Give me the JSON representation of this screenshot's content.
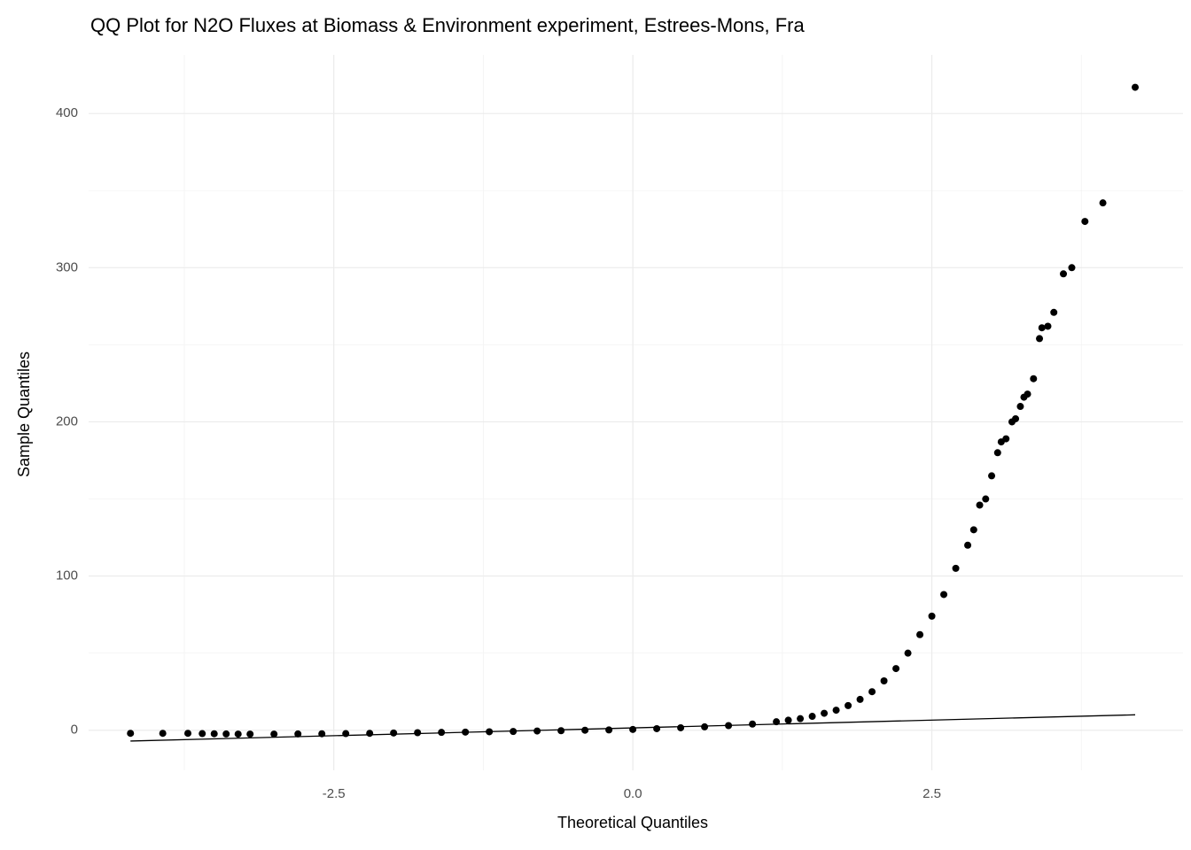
{
  "chart_data": {
    "type": "scatter",
    "title": "QQ Plot for N2O Fluxes at Biomass & Environment experiment, Estrees-Mons, Fra",
    "x_label": "Theoretical Quantiles",
    "y_label": "Sample Quantiles",
    "x": [
      -4.2,
      -3.93,
      -3.72,
      -3.6,
      -3.5,
      -3.4,
      -3.3,
      -3.2,
      -3.0,
      -2.8,
      -2.6,
      -2.4,
      -2.2,
      -2.0,
      -1.8,
      -1.6,
      -1.4,
      -1.2,
      -1.0,
      -0.8,
      -0.6,
      -0.4,
      -0.2,
      0,
      0.2,
      0.4,
      0.6,
      0.8,
      1.0,
      1.2,
      1.3,
      1.4,
      1.5,
      1.6,
      1.7,
      1.8,
      1.9,
      2.0,
      2.1,
      2.2,
      2.3,
      2.4,
      2.5,
      2.6,
      2.7,
      2.8,
      2.85,
      2.9,
      2.95,
      3.0,
      3.05,
      3.08,
      3.12,
      3.17,
      3.2,
      3.24,
      3.27,
      3.3,
      3.35,
      3.4,
      3.42,
      3.47,
      3.52,
      3.6,
      3.67,
      3.78,
      3.93,
      4.2
    ],
    "values": [
      -2,
      -2,
      -2,
      -2.2,
      -2.3,
      -2.4,
      -2.5,
      -2.5,
      -2.5,
      -2.4,
      -2.3,
      -2.2,
      -2,
      -1.8,
      -1.6,
      -1.4,
      -1.2,
      -1,
      -0.8,
      -0.5,
      -0.3,
      0,
      0.2,
      0.5,
      1,
      1.6,
      2.2,
      3,
      4,
      5.5,
      6.5,
      7.5,
      9,
      11,
      13,
      16,
      20,
      25,
      32,
      40,
      50,
      62,
      74,
      88,
      105,
      120,
      130,
      146,
      150,
      165,
      180,
      187,
      189,
      200,
      202,
      210,
      216,
      218,
      228,
      254,
      261,
      262,
      271,
      296,
      300,
      330,
      342,
      417
    ],
    "color": "#000000",
    "reference_line": {
      "x": [
        -4.2,
        4.2
      ],
      "y": [
        -7,
        10
      ],
      "color": "#000000"
    },
    "xlim": [
      -4.55,
      4.6
    ],
    "ylim": [
      -26,
      438
    ],
    "xticks": [
      {
        "value": -2.5,
        "label": "-2.5"
      },
      {
        "value": 0,
        "label": "0.0"
      },
      {
        "value": 2.5,
        "label": "2.5"
      }
    ],
    "yticks": [
      0,
      100,
      200,
      300,
      400
    ],
    "xminor": [
      -3.75,
      -1.25,
      1.25,
      3.75
    ],
    "yminor": [
      50,
      150,
      250,
      350
    ],
    "grid": true
  }
}
